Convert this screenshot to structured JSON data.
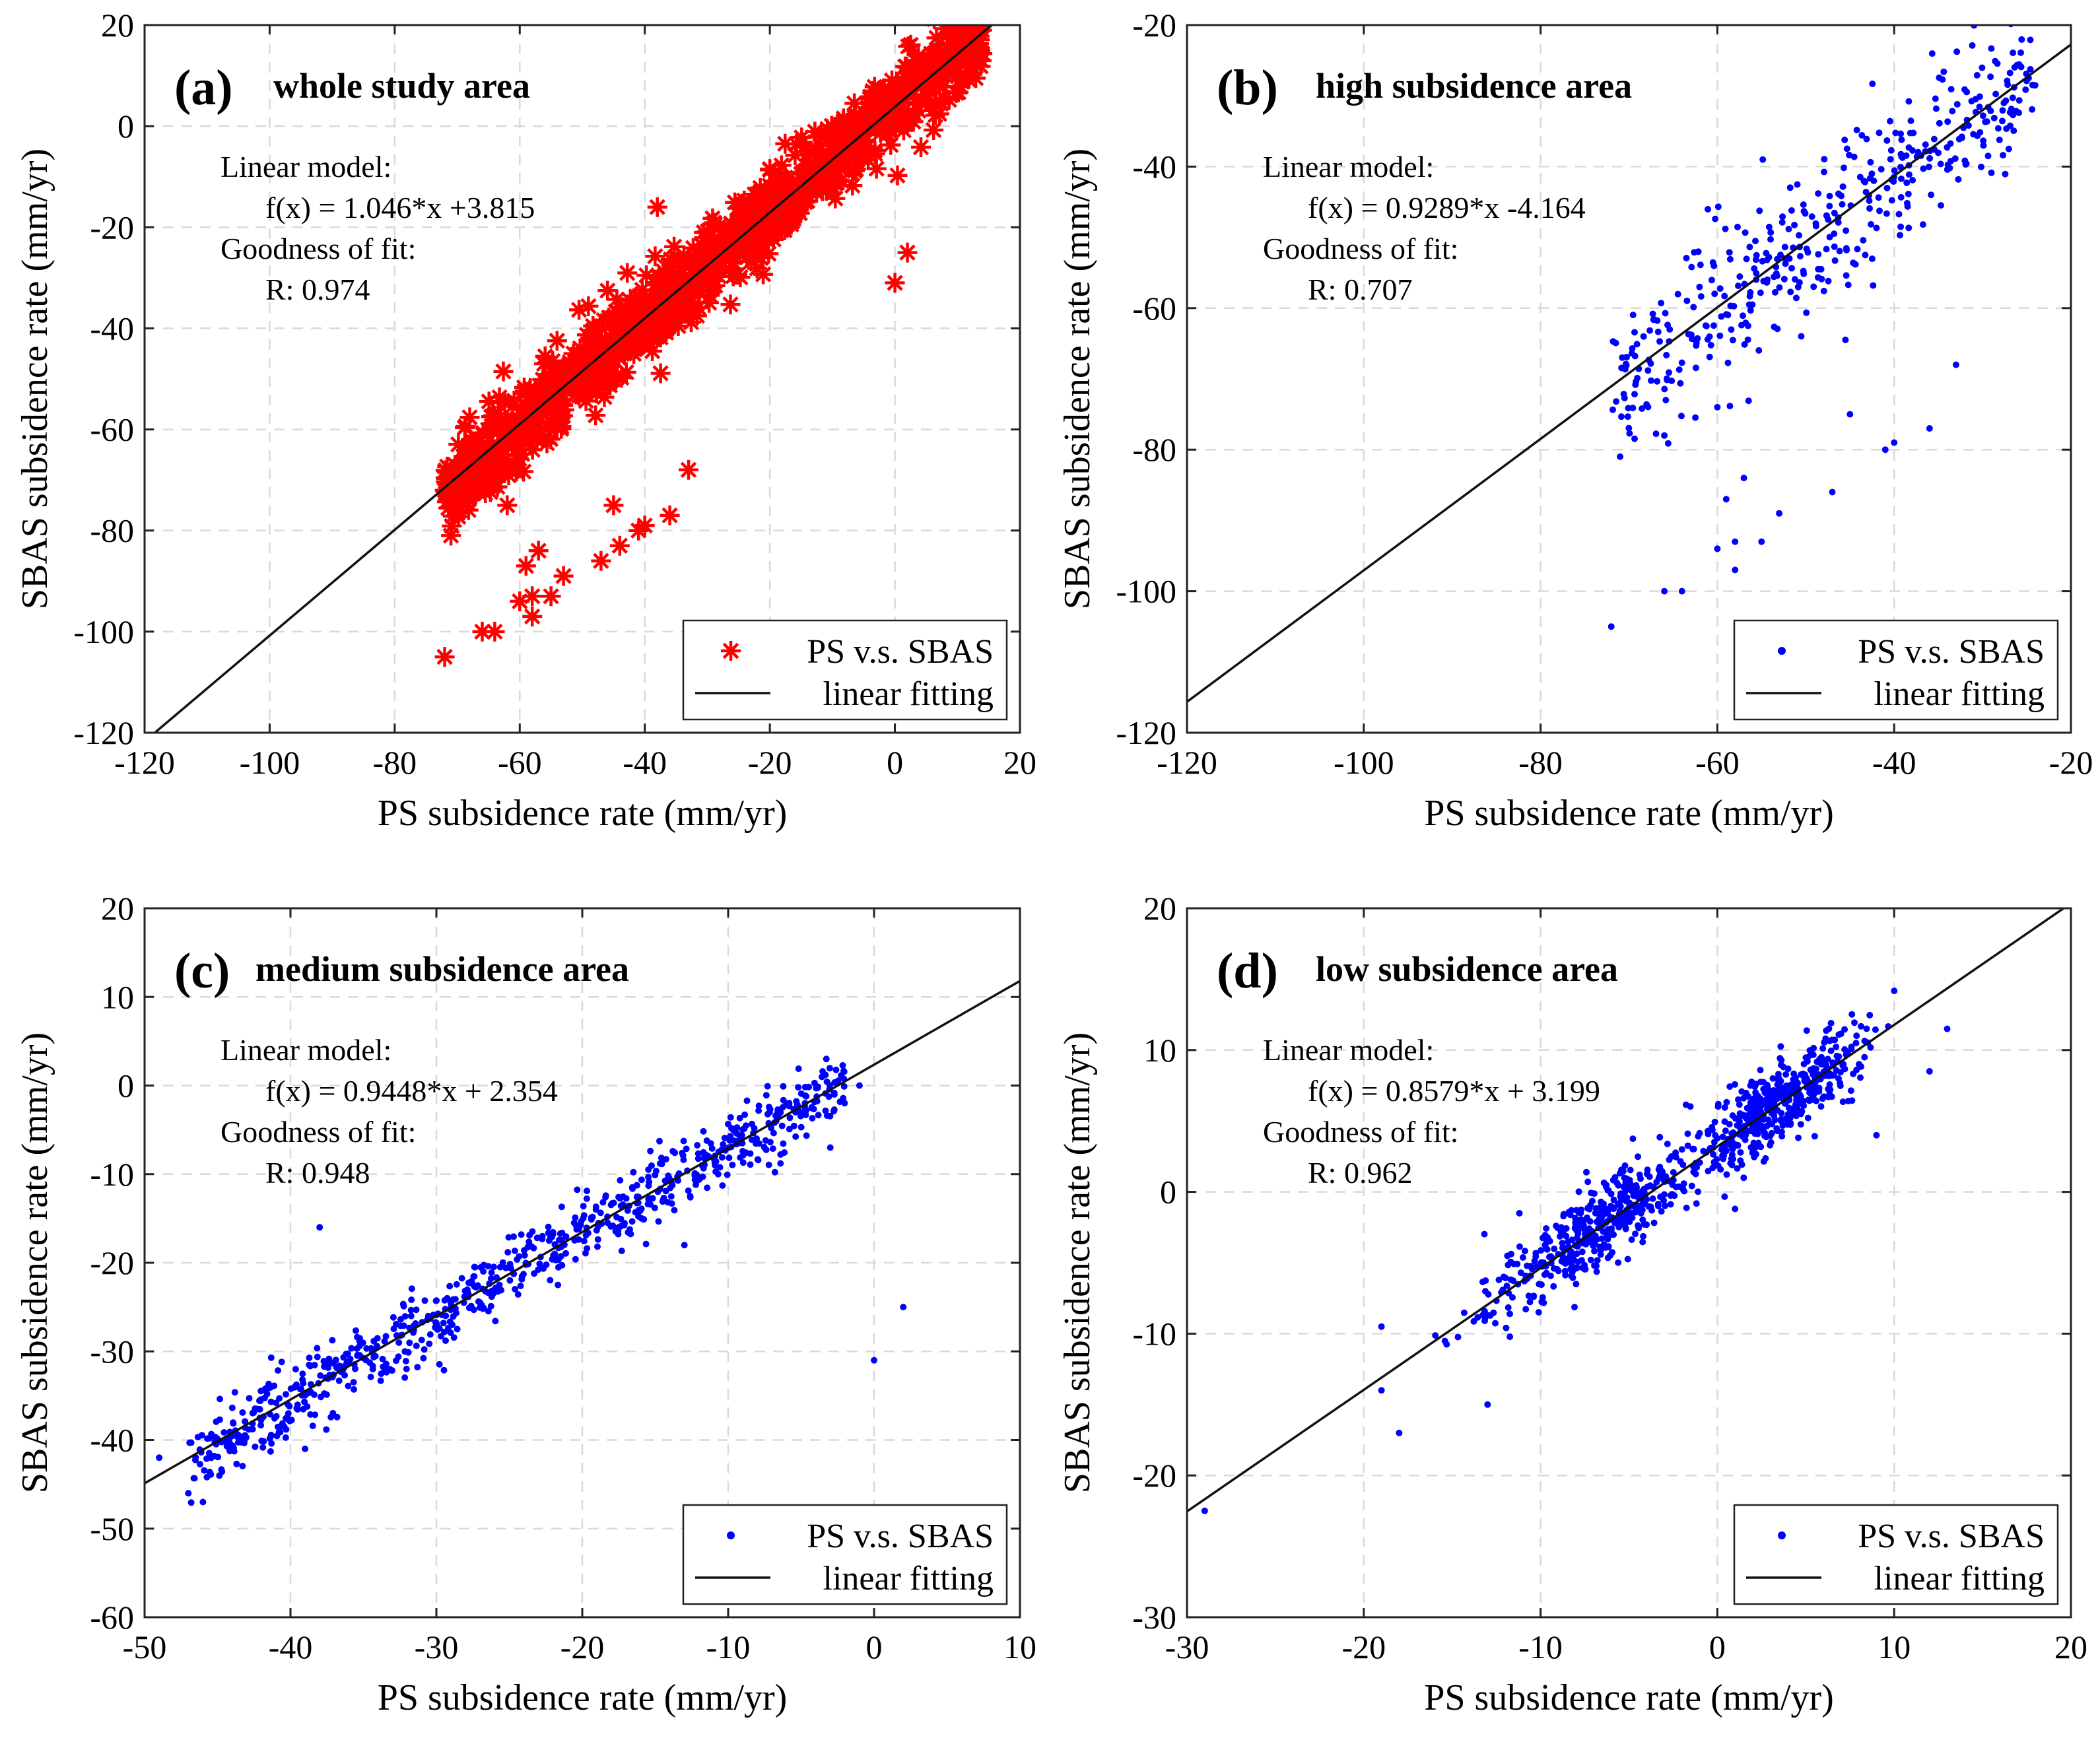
{
  "figure": {
    "panels": [
      {
        "id": "a",
        "tag": "(a)",
        "title": "whole study area",
        "xlabel": "PS subsidence rate (mm/yr)",
        "ylabel": "SBAS subsidence rate (mm/yr)",
        "xlim": [
          -120,
          20
        ],
        "ylim": [
          -120,
          20
        ],
        "xticks": [
          -120,
          -100,
          -80,
          -60,
          -40,
          -20,
          0,
          20
        ],
        "yticks": [
          -120,
          -100,
          -80,
          -60,
          -40,
          -20,
          0,
          20
        ],
        "marker": "star",
        "color": "#ff0000",
        "annotation": [
          "Linear model:",
          "f(x) = 1.046*x +3.815",
          "Goodness of fit:",
          "R: 0.974"
        ],
        "legend": [
          "PS v.s. SBAS",
          "linear fitting"
        ],
        "fit": {
          "slope": 1.046,
          "intercept": 3.815
        },
        "points": {
          "count": 1100,
          "xrange": [
            -72,
            14
          ],
          "xmode": "uniform",
          "noise": 4.0
        },
        "outliers": [
          [
            -72,
            -105
          ],
          [
            -71,
            -81
          ],
          [
            -66,
            -100
          ],
          [
            -64,
            -100
          ],
          [
            -62,
            -75
          ],
          [
            -60,
            -94
          ],
          [
            -59,
            -87
          ],
          [
            -58,
            -97
          ],
          [
            -57,
            -84
          ],
          [
            -58,
            -93
          ],
          [
            -55,
            -93
          ],
          [
            -53,
            -89
          ],
          [
            -47,
            -86
          ],
          [
            -45,
            -75
          ],
          [
            -41,
            -80
          ],
          [
            -40,
            -79
          ],
          [
            -36,
            -77
          ],
          [
            -33,
            -68
          ],
          [
            -44,
            -83
          ],
          [
            0,
            -31
          ],
          [
            2,
            -25
          ],
          [
            -38,
            -16
          ]
        ]
      },
      {
        "id": "b",
        "tag": "(b)",
        "title": "high subsidence area",
        "xlabel": "PS subsidence rate (mm/yr)",
        "ylabel": "SBAS subsidence rate (mm/yr)",
        "xlim": [
          -120,
          -20
        ],
        "ylim": [
          -120,
          -20
        ],
        "xticks": [
          -120,
          -100,
          -80,
          -60,
          -40,
          -20
        ],
        "yticks": [
          -120,
          -100,
          -80,
          -60,
          -40,
          -20
        ],
        "marker": "dot",
        "color": "#0000ff",
        "annotation": [
          "Linear model:",
          "f(x) = 0.9289*x -4.164",
          "Goodness of fit:",
          "R: 0.707"
        ],
        "legend": [
          "PS v.s. SBAS",
          "linear fitting"
        ],
        "fit": {
          "slope": 0.9289,
          "intercept": -4.164
        },
        "points": {
          "count": 420,
          "xrange": [
            -72,
            -24
          ],
          "xmode": "uniform",
          "noise": 6.0
        },
        "outliers": [
          [
            -72,
            -105
          ],
          [
            -71,
            -81
          ],
          [
            -66,
            -100
          ],
          [
            -64,
            -100
          ],
          [
            -60,
            -94
          ],
          [
            -59,
            -87
          ],
          [
            -58,
            -97
          ],
          [
            -57,
            -84
          ],
          [
            -58,
            -93
          ],
          [
            -55,
            -93
          ],
          [
            -53,
            -89
          ],
          [
            -47,
            -86
          ],
          [
            -45,
            -75
          ],
          [
            -41,
            -80
          ],
          [
            -40,
            -79
          ],
          [
            -36,
            -77
          ],
          [
            -33,
            -68
          ],
          [
            -66,
            -78
          ],
          [
            -60,
            -74
          ]
        ]
      },
      {
        "id": "c",
        "tag": "(c)",
        "title": "medium subsidence area",
        "xlabel": "PS subsidence rate (mm/yr)",
        "ylabel": "SBAS subsidence rate (mm/yr)",
        "xlim": [
          -50,
          10
        ],
        "ylim": [
          -60,
          20
        ],
        "xticks": [
          -50,
          -40,
          -30,
          -20,
          -10,
          0,
          10
        ],
        "yticks": [
          -60,
          -50,
          -40,
          -30,
          -20,
          -10,
          0,
          10,
          20
        ],
        "marker": "dot",
        "color": "#0000ff",
        "annotation": [
          "Linear model:",
          "f(x) = 0.9448*x + 2.354",
          "Goodness of fit:",
          "R: 0.948"
        ],
        "legend": [
          "PS v.s. SBAS",
          "linear fitting"
        ],
        "fit": {
          "slope": 0.9448,
          "intercept": 2.354
        },
        "points": {
          "count": 780,
          "xrange": [
            -47,
            -2
          ],
          "xmode": "uniform",
          "noise": 2.0
        },
        "outliers": [
          [
            0,
            -31
          ],
          [
            2,
            -25
          ],
          [
            -38,
            -16
          ],
          [
            -49,
            -42
          ],
          [
            -47,
            -46
          ],
          [
            -46,
            -47
          ],
          [
            -39,
            -41
          ],
          [
            -13,
            -18
          ],
          [
            -3,
            -7
          ],
          [
            -1,
            0
          ]
        ]
      },
      {
        "id": "d",
        "tag": "(d)",
        "title": "low subsidence area",
        "xlabel": "PS subsidence rate (mm/yr)",
        "ylabel": "SBAS subsidence rate (mm/yr)",
        "xlim": [
          -30,
          20
        ],
        "ylim": [
          -30,
          20
        ],
        "xticks": [
          -30,
          -20,
          -10,
          0,
          10,
          20
        ],
        "yticks": [
          -30,
          -20,
          -10,
          0,
          10,
          20
        ],
        "marker": "dot",
        "color": "#0000ff",
        "annotation": [
          "Linear model:",
          "f(x) = 0.8579*x + 3.199",
          "Goodness of fit:",
          "R: 0.962"
        ],
        "legend": [
          "PS v.s. SBAS",
          "linear fitting"
        ],
        "fit": {
          "slope": 0.8579,
          "intercept": 3.199
        },
        "points": {
          "count": 900,
          "xrange": [
            -19,
            10
          ],
          "xmode": "twocluster",
          "noise": 1.5
        },
        "outliers": [
          [
            -29,
            -22.5
          ],
          [
            -18,
            -17
          ],
          [
            -19,
            -14
          ],
          [
            -13,
            -15
          ],
          [
            13,
            11.5
          ],
          [
            12,
            8.5
          ],
          [
            -19,
            -9.5
          ],
          [
            1,
            -1.2
          ],
          [
            -2,
            3
          ],
          [
            9,
            4
          ]
        ]
      }
    ]
  },
  "chart_data": [
    {
      "type": "scatter",
      "title": "(a) whole study area",
      "xlabel": "PS subsidence rate (mm/yr)",
      "ylabel": "SBAS subsidence rate (mm/yr)",
      "xlim": [
        -120,
        20
      ],
      "ylim": [
        -120,
        20
      ],
      "series": [
        {
          "name": "PS v.s. SBAS"
        },
        {
          "name": "linear fitting",
          "slope": 1.046,
          "intercept": 3.815
        }
      ],
      "stats": {
        "model": "f(x) = 1.046*x +3.815",
        "R": 0.974
      },
      "grid": true,
      "legend": "bottom-right"
    },
    {
      "type": "scatter",
      "title": "(b) high subsidence area",
      "xlabel": "PS subsidence rate (mm/yr)",
      "ylabel": "SBAS subsidence rate (mm/yr)",
      "xlim": [
        -120,
        -20
      ],
      "ylim": [
        -120,
        -20
      ],
      "series": [
        {
          "name": "PS v.s. SBAS"
        },
        {
          "name": "linear fitting",
          "slope": 0.9289,
          "intercept": -4.164
        }
      ],
      "stats": {
        "model": "f(x) = 0.9289*x -4.164",
        "R": 0.707
      },
      "grid": true,
      "legend": "bottom-right"
    },
    {
      "type": "scatter",
      "title": "(c) medium subsidence area",
      "xlabel": "PS subsidence rate (mm/yr)",
      "ylabel": "SBAS subsidence rate (mm/yr)",
      "xlim": [
        -50,
        10
      ],
      "ylim": [
        -60,
        20
      ],
      "series": [
        {
          "name": "PS v.s. SBAS"
        },
        {
          "name": "linear fitting",
          "slope": 0.9448,
          "intercept": 2.354
        }
      ],
      "stats": {
        "model": "f(x) = 0.9448*x + 2.354",
        "R": 0.948
      },
      "grid": true,
      "legend": "bottom-right"
    },
    {
      "type": "scatter",
      "title": "(d) low subsidence area",
      "xlabel": "PS subsidence rate (mm/yr)",
      "ylabel": "SBAS subsidence rate (mm/yr)",
      "xlim": [
        -30,
        20
      ],
      "ylim": [
        -30,
        20
      ],
      "series": [
        {
          "name": "PS v.s. SBAS"
        },
        {
          "name": "linear fitting",
          "slope": 0.8579,
          "intercept": 3.199
        }
      ],
      "stats": {
        "model": "f(x) = 0.8579*x + 3.199",
        "R": 0.962
      },
      "grid": true,
      "legend": "bottom-right"
    }
  ]
}
